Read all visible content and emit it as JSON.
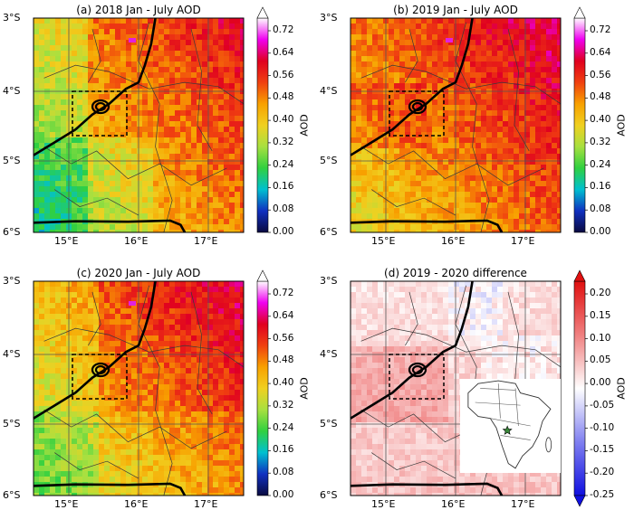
{
  "panels": [
    {
      "id": "a",
      "title": "(a) 2018 Jan - July AOD",
      "colorbar": "aod",
      "palette": "p2018"
    },
    {
      "id": "b",
      "title": "(b) 2019 Jan - July AOD",
      "colorbar": "aod",
      "palette": "p2019"
    },
    {
      "id": "c",
      "title": "(c) 2020 Jan - July AOD",
      "colorbar": "aod",
      "palette": "p2020"
    },
    {
      "id": "d",
      "title": "(d) 2019 - 2020 difference",
      "colorbar": "diff",
      "palette": "diff",
      "inset": true
    }
  ],
  "lat_labels": [
    "3°S",
    "4°S",
    "5°S",
    "6°S"
  ],
  "lon_labels": [
    "15°E",
    "16°E",
    "17°E"
  ],
  "colorbars": {
    "aod": {
      "label": "AOD",
      "ticks": [
        "0.72",
        "0.64",
        "0.56",
        "0.48",
        "0.40",
        "0.32",
        "0.24",
        "0.16",
        "0.08",
        "0.00"
      ]
    },
    "diff": {
      "label": "AOD",
      "ticks": [
        "0.20",
        "0.15",
        "0.10",
        "0.05",
        "0.00",
        "-0.05",
        "-0.10",
        "-0.15",
        "-0.20",
        "-0.25"
      ]
    }
  },
  "colors": {
    "aod_scale": [
      "#0a0a40",
      "#1030c0",
      "#00c0d0",
      "#30d040",
      "#a8e040",
      "#f0d020",
      "#f8a000",
      "#f04010",
      "#e00020",
      "#f000f0",
      "#ffffff"
    ],
    "diff_scale": [
      "#1010e0",
      "#8080f0",
      "#ffffff",
      "#f08080",
      "#e01010"
    ],
    "study_box": "#000000",
    "inset_marker": "#3a8a3a"
  }
}
